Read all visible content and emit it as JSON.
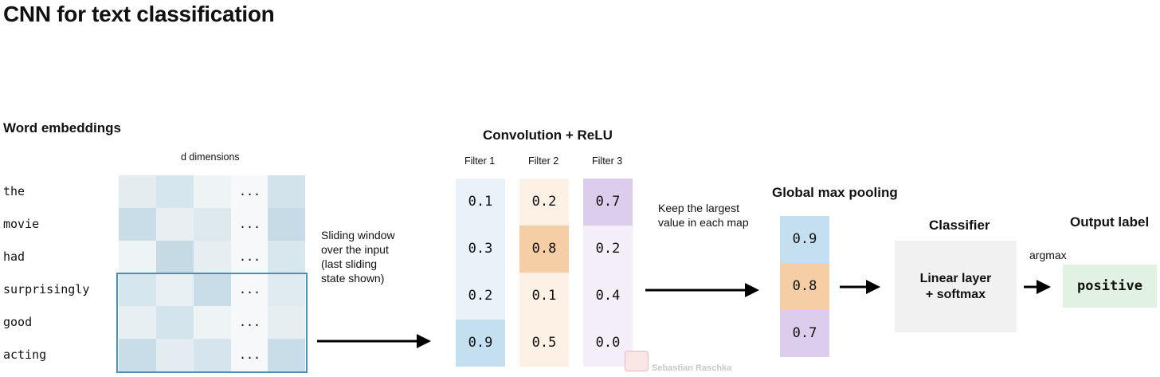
{
  "title": "CNN for text classification",
  "embeddings": {
    "heading": "Word embeddings",
    "dims_label": "d dimensions",
    "ellipsis": "...",
    "words": [
      "the",
      "movie",
      "had",
      "surprisingly",
      "good",
      "acting"
    ],
    "colors": [
      [
        "#e4ecf0",
        "#d6e6ee",
        "#eef3f5",
        "#d2e3ec"
      ],
      [
        "#c9dde8",
        "#e8eef1",
        "#dde9ef",
        "#c6dbe6"
      ],
      [
        "#eef3f5",
        "#c5dae5",
        "#e6eef2",
        "#d8e6ed"
      ],
      [
        "#d6e6ee",
        "#e8f0f4",
        "#c9dde8",
        "#dfebf1"
      ],
      [
        "#e8eff3",
        "#d3e4ed",
        "#eef3f5",
        "#e6eef2"
      ],
      [
        "#c9dde8",
        "#e2ecf1",
        "#d6e5ed",
        "#c9dde8"
      ]
    ]
  },
  "sliding_note": [
    "Sliding window",
    "over the input",
    "(last sliding",
    "state shown)"
  ],
  "convolution": {
    "heading": "Convolution + ReLU",
    "filters": [
      {
        "label": "Filter 1",
        "values": [
          "0.1",
          "0.3",
          "0.2",
          "0.9"
        ],
        "base": "#e8f2f8",
        "highlight_index": 3,
        "highlight": "#c4e0f0"
      },
      {
        "label": "Filter 2",
        "values": [
          "0.2",
          "0.8",
          "0.1",
          "0.5"
        ],
        "base": "#fdf1e5",
        "highlight_index": 1,
        "highlight": "#f5cea5"
      },
      {
        "label": "Filter 3",
        "values": [
          "0.7",
          "0.2",
          "0.4",
          "0.0"
        ],
        "base": "#f4eef8",
        "highlight_index": 0,
        "highlight": "#dccdec"
      }
    ]
  },
  "keep_note": [
    "Keep the largest",
    "value in each map"
  ],
  "pooling": {
    "heading": "Global max pooling",
    "values": [
      "0.9",
      "0.8",
      "0.7"
    ],
    "colors": [
      "#c4e0f0",
      "#f5cea5",
      "#dccdec"
    ]
  },
  "classifier": {
    "heading": "Classifier",
    "lines": [
      "Linear layer",
      "+ softmax"
    ]
  },
  "argmax_label": "argmax",
  "output": {
    "heading": "Output label",
    "value": "positive"
  },
  "watermark": "Sebastian Raschka"
}
